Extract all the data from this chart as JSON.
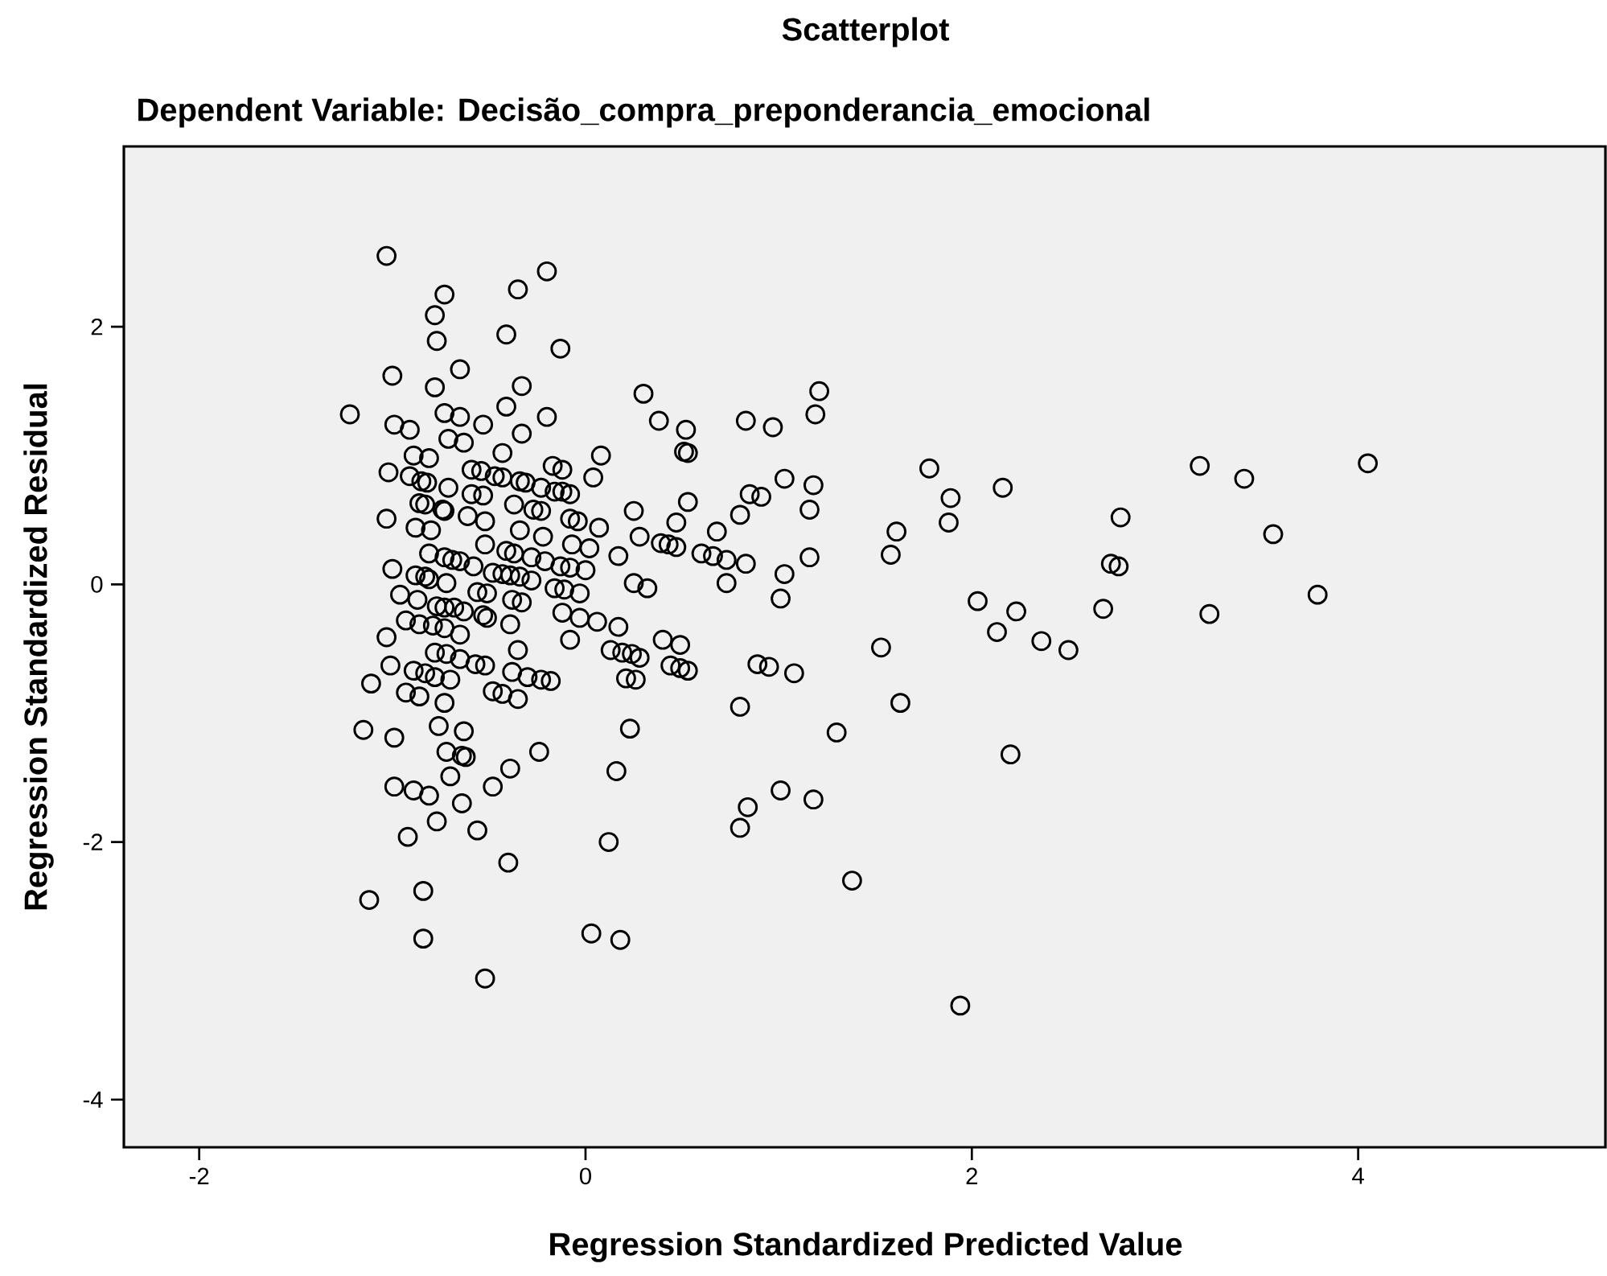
{
  "chart_data": {
    "type": "scatter",
    "title": "Scatterplot",
    "subtitle": "Dependent Variable: Decisão_compra_preponderancia_emocional",
    "xlabel": "Regression Standardized Predicted Value",
    "ylabel": "Regression Standardized Residual",
    "xlim": [
      -2.39,
      5.28
    ],
    "ylim": [
      -4.37,
      3.4
    ],
    "xticks": [
      -2,
      0,
      2,
      4
    ],
    "yticks": [
      -4,
      -2,
      0,
      2
    ],
    "marker": "circle",
    "color": "#000000",
    "x": [
      -1.03,
      -0.73,
      -0.78,
      -0.77,
      -0.35,
      -0.2,
      -0.41,
      -0.13,
      -1.0,
      -0.65,
      -0.78,
      -0.33,
      -1.22,
      -0.41,
      -0.2,
      0.3,
      -0.99,
      -0.91,
      -0.73,
      -0.65,
      -0.53,
      -0.71,
      -0.63,
      -0.33,
      -0.43,
      0.08,
      -0.89,
      -0.81,
      -1.02,
      -0.91,
      -0.85,
      -0.82,
      -0.71,
      -0.59,
      -0.54,
      -0.47,
      -0.43,
      -0.34,
      -0.31,
      -0.23,
      -0.17,
      -0.12,
      -0.16,
      -0.12,
      -0.08,
      0.04,
      -0.86,
      -0.83,
      -0.74,
      -0.73,
      -0.59,
      -0.53,
      -0.61,
      -0.52,
      -0.37,
      -0.27,
      -0.23,
      -1.03,
      -0.88,
      -0.8,
      -0.34,
      -0.22,
      -0.08,
      -0.04,
      0.07,
      0.25,
      0.28,
      -0.52,
      -0.07,
      0.02,
      0.17,
      -0.81,
      -0.73,
      -0.69,
      -0.65,
      -0.58,
      -0.41,
      -0.37,
      -0.28,
      -0.21,
      -0.13,
      -0.08,
      0.0,
      -1.0,
      -0.48,
      -0.43,
      -0.39,
      -0.34,
      -0.28,
      -0.88,
      -0.83,
      -0.81,
      -0.72,
      0.25,
      0.32,
      -0.96,
      -0.87,
      -0.77,
      -0.73,
      -0.68,
      -0.63,
      -0.56,
      -0.51,
      -0.38,
      -0.33,
      -0.16,
      -0.11,
      -0.03,
      -0.93,
      -0.86,
      -0.79,
      -0.73,
      -0.65,
      -0.53,
      -0.51,
      -0.39,
      -0.12,
      -0.03,
      0.06,
      0.17,
      -1.03,
      -0.35,
      -0.08,
      -0.78,
      -0.72,
      -0.65,
      -0.57,
      -0.52,
      -1.01,
      -0.89,
      -0.83,
      -0.78,
      -0.7,
      -0.38,
      -0.3,
      -0.23,
      -0.18,
      0.13,
      0.19,
      0.24,
      0.28,
      0.21,
      0.26,
      -1.11,
      -0.93,
      -0.86,
      -0.73,
      -0.48,
      -0.43,
      -0.35,
      -1.15,
      -0.99,
      -0.76,
      -0.63,
      0.23,
      -0.72,
      -0.64,
      -0.62,
      -0.24,
      -0.39,
      0.16,
      -0.7,
      -0.48,
      -0.99,
      -0.89,
      -0.81,
      -0.64,
      -0.77,
      -0.56,
      -0.92,
      0.12,
      -0.4,
      -0.84,
      -1.12,
      -0.84,
      0.03,
      0.18,
      -0.52,
      1.21,
      1.19,
      0.38,
      0.52,
      0.83,
      0.97,
      0.51,
      0.53,
      1.03,
      1.18,
      0.85,
      0.91,
      1.16,
      0.53,
      0.8,
      0.47,
      0.68,
      0.39,
      0.43,
      0.47,
      0.6,
      0.66,
      0.73,
      0.83,
      1.16,
      1.78,
      1.89,
      1.88,
      1.61,
      1.58,
      1.03,
      1.01,
      0.73,
      2.03,
      2.13,
      0.4,
      0.49,
      0.44,
      0.49,
      0.53,
      0.89,
      0.95,
      1.08,
      1.53,
      0.8,
      1.63,
      1.3,
      1.01,
      1.18,
      0.84,
      0.8,
      1.38,
      1.94,
      2.16,
      3.18,
      3.41,
      4.05,
      2.77,
      3.56,
      2.72,
      2.76,
      2.23,
      2.36,
      2.5,
      2.68,
      3.23,
      3.79,
      2.2
    ],
    "values": [
      2.55,
      2.25,
      2.09,
      1.89,
      2.29,
      2.43,
      1.94,
      1.83,
      1.62,
      1.67,
      1.53,
      1.54,
      1.32,
      1.38,
      1.3,
      1.48,
      1.24,
      1.2,
      1.33,
      1.3,
      1.24,
      1.13,
      1.1,
      1.17,
      1.02,
      1.0,
      1.0,
      0.98,
      0.87,
      0.84,
      0.8,
      0.79,
      0.75,
      0.89,
      0.88,
      0.84,
      0.83,
      0.8,
      0.79,
      0.75,
      0.92,
      0.89,
      0.72,
      0.72,
      0.7,
      0.83,
      0.63,
      0.62,
      0.58,
      0.57,
      0.7,
      0.69,
      0.53,
      0.49,
      0.62,
      0.58,
      0.57,
      0.51,
      0.44,
      0.42,
      0.42,
      0.37,
      0.51,
      0.49,
      0.44,
      0.57,
      0.37,
      0.31,
      0.31,
      0.28,
      0.22,
      0.24,
      0.21,
      0.19,
      0.18,
      0.14,
      0.26,
      0.24,
      0.21,
      0.18,
      0.14,
      0.13,
      0.11,
      0.12,
      0.09,
      0.08,
      0.07,
      0.06,
      0.03,
      0.07,
      0.06,
      0.04,
      0.01,
      0.01,
      -0.03,
      -0.08,
      -0.12,
      -0.17,
      -0.18,
      -0.18,
      -0.21,
      -0.06,
      -0.07,
      -0.12,
      -0.14,
      -0.03,
      -0.04,
      -0.07,
      -0.28,
      -0.31,
      -0.32,
      -0.34,
      -0.39,
      -0.24,
      -0.26,
      -0.31,
      -0.22,
      -0.26,
      -0.29,
      -0.33,
      -0.41,
      -0.51,
      -0.43,
      -0.53,
      -0.54,
      -0.58,
      -0.62,
      -0.63,
      -0.63,
      -0.67,
      -0.69,
      -0.72,
      -0.74,
      -0.68,
      -0.72,
      -0.74,
      -0.75,
      -0.51,
      -0.53,
      -0.54,
      -0.57,
      -0.73,
      -0.74,
      -0.77,
      -0.84,
      -0.87,
      -0.92,
      -0.83,
      -0.85,
      -0.89,
      -1.13,
      -1.19,
      -1.1,
      -1.14,
      -1.12,
      -1.3,
      -1.33,
      -1.34,
      -1.3,
      -1.43,
      -1.45,
      -1.49,
      -1.57,
      -1.57,
      -1.6,
      -1.64,
      -1.7,
      -1.84,
      -1.91,
      -1.96,
      -2.0,
      -2.16,
      -2.38,
      -2.45,
      -2.75,
      -2.71,
      -2.76,
      -3.06,
      1.5,
      1.32,
      1.27,
      1.2,
      1.27,
      1.22,
      1.03,
      1.02,
      0.82,
      0.77,
      0.7,
      0.68,
      0.58,
      0.64,
      0.54,
      0.48,
      0.41,
      0.32,
      0.31,
      0.29,
      0.24,
      0.22,
      0.19,
      0.16,
      0.21,
      0.9,
      0.67,
      0.48,
      0.41,
      0.23,
      0.08,
      -0.11,
      0.01,
      -0.13,
      -0.37,
      -0.43,
      -0.47,
      -0.63,
      -0.65,
      -0.67,
      -0.62,
      -0.64,
      -0.69,
      -0.49,
      -0.95,
      -0.92,
      -1.15,
      -1.6,
      -1.67,
      -1.73,
      -1.89,
      -2.3,
      -3.27,
      0.75,
      0.92,
      0.82,
      0.94,
      0.52,
      0.39,
      0.16,
      0.14,
      -0.21,
      -0.44,
      -0.51,
      -0.19,
      -0.23,
      -0.08,
      -1.32
    ]
  }
}
